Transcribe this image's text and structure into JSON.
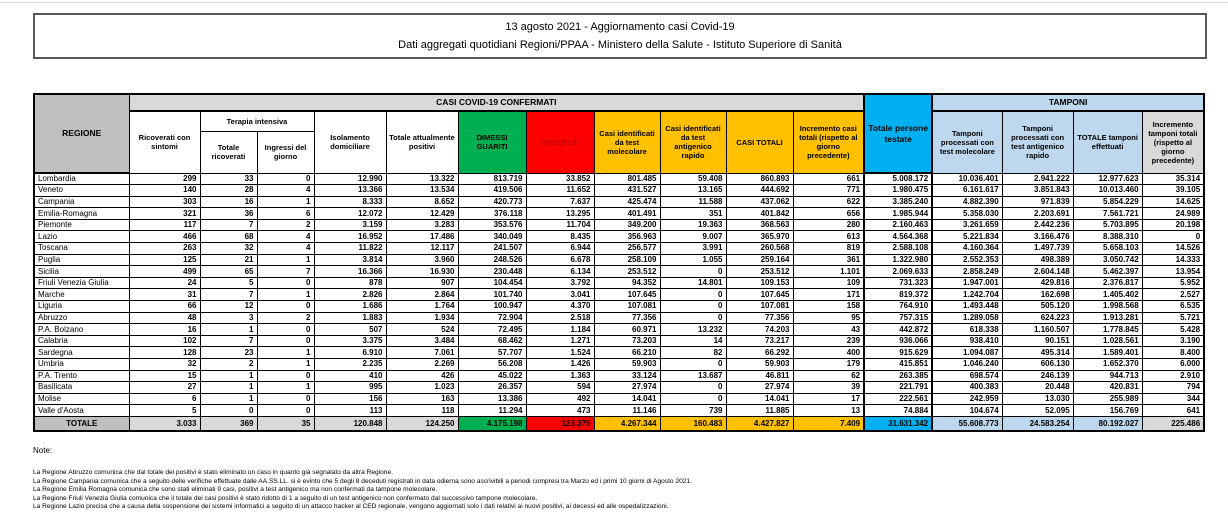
{
  "title_box": {
    "line1": "13 agosto 2021 - Aggiornamento casi Covid-19",
    "line2": "Dati aggregati quotidiani Regioni/PPAA - Ministero della Salute - Istituto Superiore di Sanità"
  },
  "table": {
    "headers": {
      "regione": "REGIONE",
      "casi_band": "CASI COVID-19 CONFERMATI",
      "tamponi_band": "TAMPONI",
      "ricoverati_sintomi": "Ricoverati con sintomi",
      "terapia_intensiva": "Terapia intensiva",
      "terapia_totale": "Totale ricoverati",
      "terapia_ingressi": "Ingressi del giorno",
      "isolamento": "Isolamento domiciliare",
      "tot_positivi": "Totale attualmente positivi",
      "dimessi": "DIMESSI GUARITI",
      "deceduti": "DECEDUTI",
      "casi_molecolare": "Casi identificati da test molecolare",
      "casi_antigenico": "Casi identificati da test antigenico rapido",
      "casi_totali": "CASI TOTALI",
      "incremento_casi": "Incremento casi totali (rispetto al giorno precedente)",
      "persone_testate": "Totale persone testate",
      "tamponi_molecolare": "Tamponi processati con test molecolare",
      "tamponi_antigenico": "Tamponi processati con test antigenico rapido",
      "tamponi_totale": "TOTALE tamponi effettuati",
      "incremento_tamponi": "Incremento tamponi totali (rispetto al giorno precedente)"
    },
    "rows": [
      [
        "Lombardia",
        "299",
        "33",
        "0",
        "12.990",
        "13.322",
        "813.719",
        "33.852",
        "801.485",
        "59.408",
        "860.893",
        "661",
        "5.008.172",
        "10.036.401",
        "2.941.222",
        "12.977.623",
        "35.314"
      ],
      [
        "Veneto",
        "140",
        "28",
        "4",
        "13.366",
        "13.534",
        "419.506",
        "11.652",
        "431.527",
        "13.165",
        "444.692",
        "771",
        "1.980.475",
        "6.161.617",
        "3.851.843",
        "10.013.460",
        "39.105"
      ],
      [
        "Campania",
        "303",
        "16",
        "1",
        "8.333",
        "8.652",
        "420.773",
        "7.637",
        "425.474",
        "11.588",
        "437.062",
        "622",
        "3.385.240",
        "4.882.390",
        "971.839",
        "5.854.229",
        "14.625"
      ],
      [
        "Emilia-Romagna",
        "321",
        "36",
        "6",
        "12.072",
        "12.429",
        "376.118",
        "13.295",
        "401.491",
        "351",
        "401.842",
        "656",
        "1.985.944",
        "5.358.030",
        "2.203.691",
        "7.561.721",
        "24.989"
      ],
      [
        "Piemonte",
        "117",
        "7",
        "2",
        "3.159",
        "3.283",
        "353.576",
        "11.704",
        "349.200",
        "19.363",
        "368.563",
        "280",
        "2.160.463",
        "3.261.659",
        "2.442.236",
        "5.703.895",
        "20.198"
      ],
      [
        "Lazio",
        "466",
        "68",
        "4",
        "16.952",
        "17.486",
        "340.049",
        "8.435",
        "356.963",
        "9.007",
        "365.970",
        "613",
        "4.564.368",
        "5.221.834",
        "3.166.476",
        "8.388.310",
        "0"
      ],
      [
        "Toscana",
        "263",
        "32",
        "4",
        "11.822",
        "12.117",
        "241.507",
        "6.944",
        "256.577",
        "3.991",
        "260.568",
        "819",
        "2.588.108",
        "4.160.364",
        "1.497.739",
        "5.658.103",
        "14.526"
      ],
      [
        "Puglia",
        "125",
        "21",
        "1",
        "3.814",
        "3.960",
        "248.526",
        "6.678",
        "258.109",
        "1.055",
        "259.164",
        "361",
        "1.322.980",
        "2.552.353",
        "498.389",
        "3.050.742",
        "14.333"
      ],
      [
        "Sicilia",
        "499",
        "65",
        "7",
        "16.366",
        "16.930",
        "230.448",
        "6.134",
        "253.512",
        "0",
        "253.512",
        "1.101",
        "2.069.633",
        "2.858.249",
        "2.604.148",
        "5.462.397",
        "13.954"
      ],
      [
        "Friuli Venezia Giulia",
        "24",
        "5",
        "0",
        "878",
        "907",
        "104.454",
        "3.792",
        "94.352",
        "14.801",
        "109.153",
        "109",
        "731.323",
        "1.947.001",
        "429.816",
        "2.376.817",
        "5.952"
      ],
      [
        "Marche",
        "31",
        "7",
        "1",
        "2.826",
        "2.864",
        "101.740",
        "3.041",
        "107.645",
        "0",
        "107.645",
        "171",
        "819.372",
        "1.242.704",
        "162.698",
        "1.405.402",
        "2.527"
      ],
      [
        "Liguria",
        "66",
        "12",
        "0",
        "1.686",
        "1.764",
        "100.947",
        "4.370",
        "107.081",
        "0",
        "107.081",
        "158",
        "764.910",
        "1.493.448",
        "505.120",
        "1.998.568",
        "6.535"
      ],
      [
        "Abruzzo",
        "48",
        "3",
        "2",
        "1.883",
        "1.934",
        "72.904",
        "2.518",
        "77.356",
        "0",
        "77.356",
        "95",
        "757.315",
        "1.289.058",
        "624.223",
        "1.913.281",
        "5.721"
      ],
      [
        "P.A. Bolzano",
        "16",
        "1",
        "0",
        "507",
        "524",
        "72.495",
        "1.184",
        "60.971",
        "13.232",
        "74.203",
        "43",
        "442.872",
        "618.338",
        "1.160.507",
        "1.778.845",
        "5.428"
      ],
      [
        "Calabria",
        "102",
        "7",
        "0",
        "3.375",
        "3.484",
        "68.462",
        "1.271",
        "73.203",
        "14",
        "73.217",
        "239",
        "936.066",
        "938.410",
        "90.151",
        "1.028.561",
        "3.190"
      ],
      [
        "Sardegna",
        "128",
        "23",
        "1",
        "6.910",
        "7.061",
        "57.707",
        "1.524",
        "66.210",
        "82",
        "66.292",
        "400",
        "915.629",
        "1.094.087",
        "495.314",
        "1.589.401",
        "8.400"
      ],
      [
        "Umbria",
        "32",
        "2",
        "1",
        "2.235",
        "2.269",
        "56.208",
        "1.426",
        "59.903",
        "0",
        "59.903",
        "179",
        "415.851",
        "1.046.240",
        "606.130",
        "1.652.370",
        "6.000"
      ],
      [
        "P.A. Trento",
        "15",
        "1",
        "0",
        "410",
        "426",
        "45.022",
        "1.363",
        "33.124",
        "13.687",
        "46.811",
        "62",
        "263.385",
        "698.574",
        "246.139",
        "944.713",
        "2.910"
      ],
      [
        "Basilicata",
        "27",
        "1",
        "1",
        "995",
        "1.023",
        "26.357",
        "594",
        "27.974",
        "0",
        "27.974",
        "39",
        "221.791",
        "400.383",
        "20.448",
        "420.831",
        "794"
      ],
      [
        "Molise",
        "6",
        "1",
        "0",
        "156",
        "163",
        "13.386",
        "492",
        "14.041",
        "0",
        "14.041",
        "17",
        "222.561",
        "242.959",
        "13.030",
        "255.989",
        "344"
      ],
      [
        "Valle d'Aosta",
        "5",
        "0",
        "0",
        "113",
        "118",
        "11.294",
        "473",
        "11.146",
        "739",
        "11.885",
        "13",
        "74.884",
        "104.674",
        "52.095",
        "156.769",
        "641"
      ]
    ],
    "totals_row": [
      "TOTALE",
      "3.033",
      "369",
      "35",
      "120.848",
      "124.250",
      "4.175.198",
      "128.379",
      "4.267.344",
      "160.483",
      "4.427.827",
      "7.409",
      "31.631.342",
      "55.608.773",
      "24.583.254",
      "80.192.027",
      "225.486"
    ]
  },
  "notes": {
    "label": "Note:",
    "items": [
      "La Regione Abruzzo comunica che dal totale dei positivi è stato eliminato un caso in quanto già segnalato da altra Regione.",
      "La Regione Campania comunica che a seguito delle verifiche effettuate dalle AA.SS.LL. si è evinto che 5 degli 8 deceduti registrati in data odierna sono ascrivibili a periodi compresi tra Marzo ed i primi 10 giorni di Agosto 2021.",
      "La Regione Emilia Romagna comunica che sono stati eliminati 9 casi, positivi a test antigenico ma non confermati da tampone molecolare.",
      "La Regione Friuli Venezia Giulia comunica che il totale dei casi positivi è stato ridotto di 1 a seguito di un test antigenico non confermato dal successivo tampone molecolare.",
      "La Regione Lazio precisa che a causa della sospensione dei sistemi informatici a seguito di un attacco hacker al CED regionale, vengono aggiornati solo i dati relativi ai nuovi positivi, ai decessi ed  alle ospedalizzazioni."
    ]
  },
  "colors": {
    "header_gray": "#BFBFBF",
    "band_gray": "#D9D9D9",
    "green": "#00B050",
    "red": "#FF0000",
    "red_text": "#C00000",
    "yellow": "#FFC000",
    "cyan": "#00B0F0",
    "light_blue": "#BDD7EE"
  }
}
